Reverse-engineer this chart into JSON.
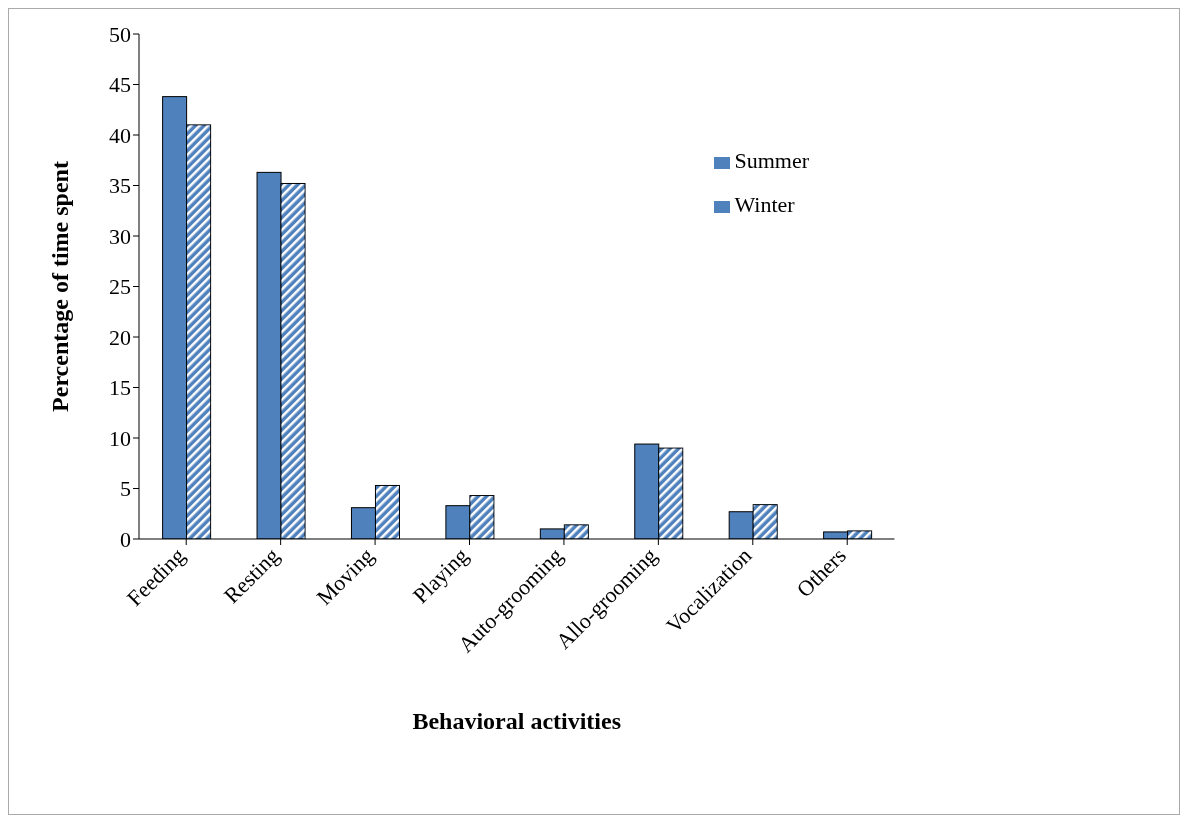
{
  "chart_data": {
    "type": "bar",
    "xlabel": "Behavioral activities",
    "ylabel": "Percentage of time spent",
    "categories": [
      "Feeding",
      "Resting",
      "Moving",
      "Playing",
      "Auto-grooming",
      "Allo-grooming",
      "Vocalization",
      "Others"
    ],
    "series": [
      {
        "name": "Summer",
        "color": "#4f81bd",
        "values": [
          43.8,
          36.3,
          3.1,
          3.3,
          1.0,
          9.4,
          2.7,
          0.7
        ]
      },
      {
        "name": "Winter",
        "color": "#4f81bd",
        "values": [
          41.0,
          35.2,
          5.3,
          4.3,
          1.4,
          9.0,
          3.4,
          0.8
        ]
      }
    ],
    "ylim": [
      0,
      50
    ],
    "yticks": [
      0,
      5,
      10,
      15,
      20,
      25,
      30,
      35,
      40,
      45,
      50
    ],
    "grid": false,
    "legend": "top right"
  }
}
